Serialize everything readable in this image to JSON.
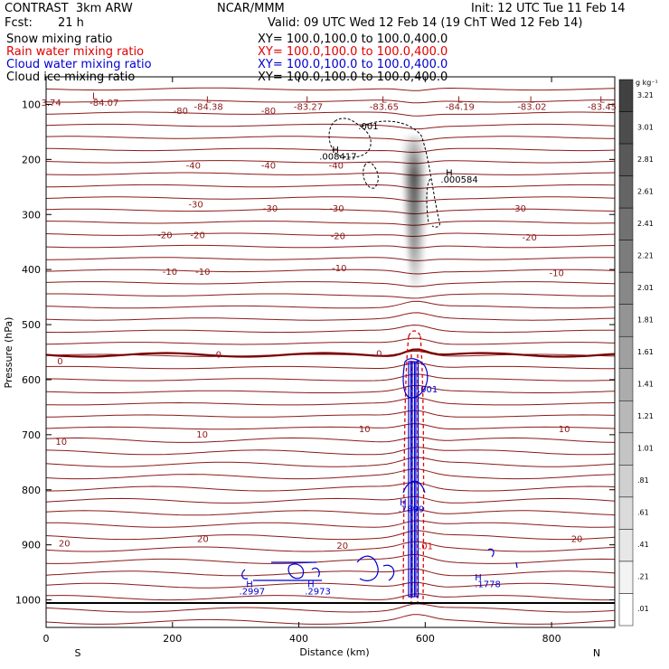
{
  "header": {
    "model": "CONTRAST  3km ARW",
    "center": "NCAR/MMM",
    "init": "Init: 12 UTC Tue 11 Feb 14",
    "fcst_label": "Fcst:",
    "fcst_value": "21 h",
    "valid": "Valid: 09 UTC Wed 12 Feb 14 (19 ChT Wed 12 Feb 14)",
    "fields": [
      {
        "name": "Snow mixing ratio",
        "xy": "XY= 100.0,100.0 to 100.0,400.0",
        "color": "#000000"
      },
      {
        "name": "Rain water mixing ratio",
        "xy": "XY= 100.0,100.0 to 100.0,400.0",
        "color": "#e00000"
      },
      {
        "name": "Cloud water mixing ratio",
        "xy": "XY= 100.0,100.0 to 100.0,400.0",
        "color": "#0000d0"
      },
      {
        "name": "Cloud ice mixing ratio",
        "xy": "XY= 100.0,100.0 to 100.0,400.0",
        "color": "#000000"
      }
    ]
  },
  "chart_data": {
    "type": "contour",
    "xlabel": "Distance (km)",
    "ylabel": "Pressure (hPa)",
    "xlim": [
      0,
      900
    ],
    "ylim": [
      1050,
      50
    ],
    "x_ticks": [
      0,
      200,
      400,
      600,
      800
    ],
    "y_ticks": [
      100,
      200,
      300,
      400,
      500,
      600,
      700,
      800,
      900,
      1000
    ],
    "x_end_labels": {
      "left": "S",
      "right": "N"
    },
    "temperature_contours": [
      {
        "label": "-80",
        "pressure": 115
      },
      {
        "label": "-40",
        "pressure": 215
      },
      {
        "label": "-30",
        "pressure": 290
      },
      {
        "label": "-20",
        "pressure": 340
      },
      {
        "label": "-10",
        "pressure": 405
      },
      {
        "label": "0",
        "pressure": 555
      },
      {
        "label": "10",
        "pressure": 695
      },
      {
        "label": "20",
        "pressure": 890
      }
    ],
    "contour_labels": [
      {
        "text": "-84.07",
        "x": 92,
        "p": 98,
        "color": "#8b1a1a"
      },
      {
        "text": "L",
        "x": 77,
        "p": 85,
        "color": "#8b1a1a"
      },
      {
        "text": "3.74",
        "x": 8,
        "p": 98,
        "color": "#8b1a1a"
      },
      {
        "text": "L",
        "x": 257,
        "p": 92,
        "color": "#8b1a1a"
      },
      {
        "text": "-84.38",
        "x": 257,
        "p": 105,
        "color": "#8b1a1a"
      },
      {
        "text": "L",
        "x": 415,
        "p": 92,
        "color": "#8b1a1a"
      },
      {
        "text": "-83.27",
        "x": 415,
        "p": 105,
        "color": "#8b1a1a"
      },
      {
        "text": "L",
        "x": 535,
        "p": 92,
        "color": "#8b1a1a"
      },
      {
        "text": "-83.65",
        "x": 535,
        "p": 105,
        "color": "#8b1a1a"
      },
      {
        "text": "L",
        "x": 655,
        "p": 92,
        "color": "#8b1a1a"
      },
      {
        "text": "-84.19",
        "x": 655,
        "p": 105,
        "color": "#8b1a1a"
      },
      {
        "text": "L",
        "x": 769,
        "p": 92,
        "color": "#8b1a1a"
      },
      {
        "text": "-83.02",
        "x": 769,
        "p": 105,
        "color": "#8b1a1a"
      },
      {
        "text": "L",
        "x": 880,
        "p": 92,
        "color": "#8b1a1a"
      },
      {
        "text": "-83.45",
        "x": 880,
        "p": 105,
        "color": "#8b1a1a"
      },
      {
        "text": "-80",
        "x": 213,
        "p": 112,
        "color": "#8b1a1a"
      },
      {
        "text": "-80",
        "x": 352,
        "p": 112,
        "color": "#8b1a1a"
      },
      {
        "text": "-40",
        "x": 233,
        "p": 212,
        "color": "#8b1a1a"
      },
      {
        "text": "-40",
        "x": 352,
        "p": 212,
        "color": "#8b1a1a"
      },
      {
        "text": "-40",
        "x": 459,
        "p": 212,
        "color": "#8b1a1a"
      },
      {
        "text": "-30",
        "x": 237,
        "p": 282,
        "color": "#8b1a1a"
      },
      {
        "text": "-30",
        "x": 355,
        "p": 290,
        "color": "#8b1a1a"
      },
      {
        "text": "-30",
        "x": 460,
        "p": 290,
        "color": "#8b1a1a"
      },
      {
        "text": "-30",
        "x": 748,
        "p": 290,
        "color": "#8b1a1a"
      },
      {
        "text": "-20",
        "x": 188,
        "p": 338,
        "color": "#8b1a1a"
      },
      {
        "text": "-20",
        "x": 240,
        "p": 338,
        "color": "#8b1a1a"
      },
      {
        "text": "-20",
        "x": 462,
        "p": 340,
        "color": "#8b1a1a"
      },
      {
        "text": "-20",
        "x": 765,
        "p": 342,
        "color": "#8b1a1a"
      },
      {
        "text": "-10",
        "x": 196,
        "p": 405,
        "color": "#8b1a1a"
      },
      {
        "text": "-10",
        "x": 248,
        "p": 405,
        "color": "#8b1a1a"
      },
      {
        "text": "-10",
        "x": 464,
        "p": 398,
        "color": "#8b1a1a"
      },
      {
        "text": "-10",
        "x": 808,
        "p": 407,
        "color": "#8b1a1a"
      },
      {
        "text": "0",
        "x": 22,
        "p": 567,
        "color": "#8b1a1a"
      },
      {
        "text": "0",
        "x": 273,
        "p": 555,
        "color": "#8b1a1a"
      },
      {
        "text": "0",
        "x": 527,
        "p": 553,
        "color": "#8b1a1a"
      },
      {
        "text": "10",
        "x": 24,
        "p": 713,
        "color": "#8b1a1a"
      },
      {
        "text": "10",
        "x": 247,
        "p": 700,
        "color": "#8b1a1a"
      },
      {
        "text": "10",
        "x": 504,
        "p": 690,
        "color": "#8b1a1a"
      },
      {
        "text": "10",
        "x": 820,
        "p": 690,
        "color": "#8b1a1a"
      },
      {
        "text": "20",
        "x": 29,
        "p": 898,
        "color": "#8b1a1a"
      },
      {
        "text": "20",
        "x": 248,
        "p": 890,
        "color": "#8b1a1a"
      },
      {
        "text": "20",
        "x": 469,
        "p": 902,
        "color": "#8b1a1a"
      },
      {
        "text": "20",
        "x": 840,
        "p": 890,
        "color": "#8b1a1a"
      },
      {
        "text": ".001",
        "x": 510,
        "p": 140,
        "color": "#000000"
      },
      {
        "text": "H",
        "x": 458,
        "p": 183,
        "color": "#000000"
      },
      {
        "text": ".008417",
        "x": 462,
        "p": 195,
        "color": "#000000"
      },
      {
        "text": "H",
        "x": 638,
        "p": 225,
        "color": "#000000"
      },
      {
        "text": ".000584",
        "x": 654,
        "p": 237,
        "color": "#000000"
      },
      {
        "text": ".001",
        "x": 604,
        "p": 618,
        "color": "#0000d0"
      },
      {
        "text": "H",
        "x": 565,
        "p": 823,
        "color": "#0000d0"
      },
      {
        "text": ".7899",
        "x": 578,
        "p": 836,
        "color": "#0000d0"
      },
      {
        "text": "H",
        "x": 684,
        "p": 960,
        "color": "#0000d0"
      },
      {
        "text": ".1778",
        "x": 699,
        "p": 972,
        "color": "#0000d0"
      },
      {
        "text": "H",
        "x": 322,
        "p": 972,
        "color": "#0000d0"
      },
      {
        "text": ".2997",
        "x": 326,
        "p": 985,
        "color": "#0000d0"
      },
      {
        "text": "H",
        "x": 419,
        "p": 972,
        "color": "#0000d0"
      },
      {
        "text": ".2973",
        "x": 430,
        "p": 985,
        "color": "#0000d0"
      },
      {
        "text": ".01",
        "x": 601,
        "p": 903,
        "color": "#e00000"
      }
    ],
    "colorbar": {
      "unit": "g kg⁻¹",
      "ticks": [
        ".01",
        ".21",
        ".41",
        ".61",
        ".81",
        "1.01",
        "1.21",
        "1.41",
        "1.61",
        "1.81",
        "2.01",
        "2.21",
        "2.41",
        "2.61",
        "2.81",
        "3.01",
        "3.21"
      ]
    }
  },
  "colors": {
    "temperature": "#8b1a1a",
    "freezing_line": "#7a0000",
    "rain": "#e00000",
    "cloud_water": "#0000d0",
    "ice": "#000000"
  }
}
